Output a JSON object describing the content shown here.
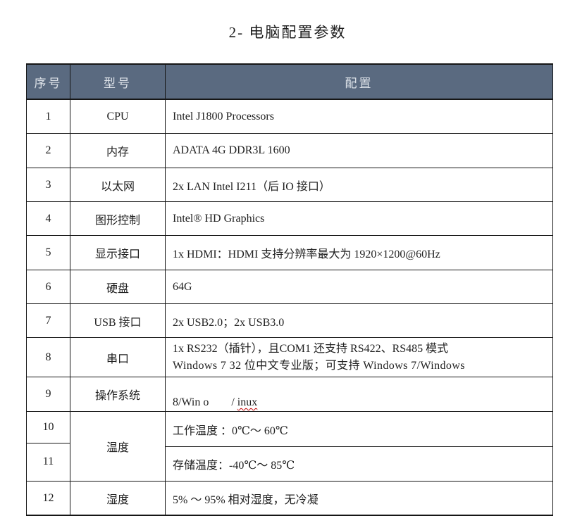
{
  "title": "2- 电脑配置参数",
  "table": {
    "headers": {
      "no": "序号",
      "model": "型号",
      "config": "配置"
    },
    "rows": [
      {
        "no": "1",
        "model": "CPU",
        "config": "Intel J1800 Processors"
      },
      {
        "no": "2",
        "model": "内存",
        "config": "ADATA 4G DDR3L 1600"
      },
      {
        "no": "3",
        "model": "以太网",
        "config": "2x LAN Intel I211（后 IO 接口）"
      },
      {
        "no": "4",
        "model": "图形控制",
        "config": "Intel® HD Graphics"
      },
      {
        "no": "5",
        "model": "显示接口",
        "config": "1x HDMI：HDMI 支持分辨率最大为 1920×1200@60Hz"
      },
      {
        "no": "6",
        "model": "硬盘",
        "config": "64G"
      },
      {
        "no": "7",
        "model": "USB 接口",
        "config": "2x USB2.0；2x USB3.0"
      },
      {
        "no": "8",
        "model": "串口",
        "config": "1x RS232（插针），且COM1 还支持 RS422、RS485 模式",
        "config_overflow": "Windows 7 32 位中文专业版；可支持 Windows 7/Windows"
      },
      {
        "no": "9",
        "model": "操作系统",
        "config_pre": "8/Win o        / ",
        "config_misspelled": "inux"
      },
      {
        "no": "10",
        "model": "温度",
        "config": "工作温度 ：0℃～ 60℃"
      },
      {
        "no": "11",
        "config": "存储温度：-40℃～ 85℃"
      },
      {
        "no": "12",
        "model": "湿度",
        "config": "5% ～ 95% 相对湿度，无冷凝"
      }
    ],
    "colors": {
      "header_bg": "#5A6A80",
      "header_text": "#DEE3E9",
      "border": "#161616",
      "body_text": "#212121",
      "spellcheck_underline": "#C00000"
    }
  }
}
